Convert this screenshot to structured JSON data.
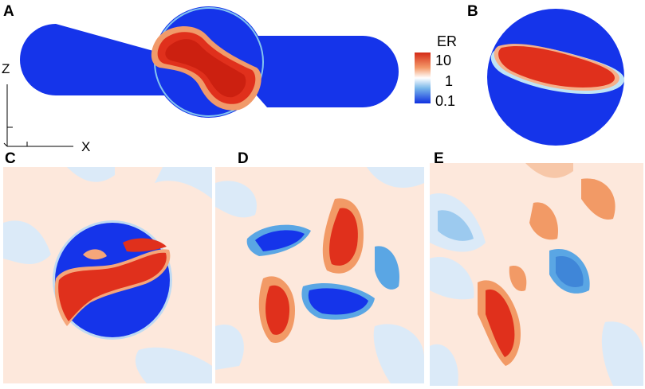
{
  "figure": {
    "panels": [
      {
        "label": "A"
      },
      {
        "label": "B"
      },
      {
        "label": "C"
      },
      {
        "label": "D"
      },
      {
        "label": "E"
      }
    ],
    "colorbar": {
      "title": "ER",
      "ticks": [
        "10",
        "1",
        "0.1"
      ],
      "colors": {
        "high": "#d42a16",
        "mid": "#ffffff",
        "low": "#1030e0"
      }
    },
    "axes": {
      "z_label": "Z",
      "x_label": "X"
    },
    "colors": {
      "deep_blue": "#1534ea",
      "deep_red": "#e0301c",
      "pale_orange": "#fde8dc",
      "pale_blue": "#dbeaf8",
      "mid_blue": "#5aa6e4",
      "mid_orange": "#f29a66"
    }
  }
}
